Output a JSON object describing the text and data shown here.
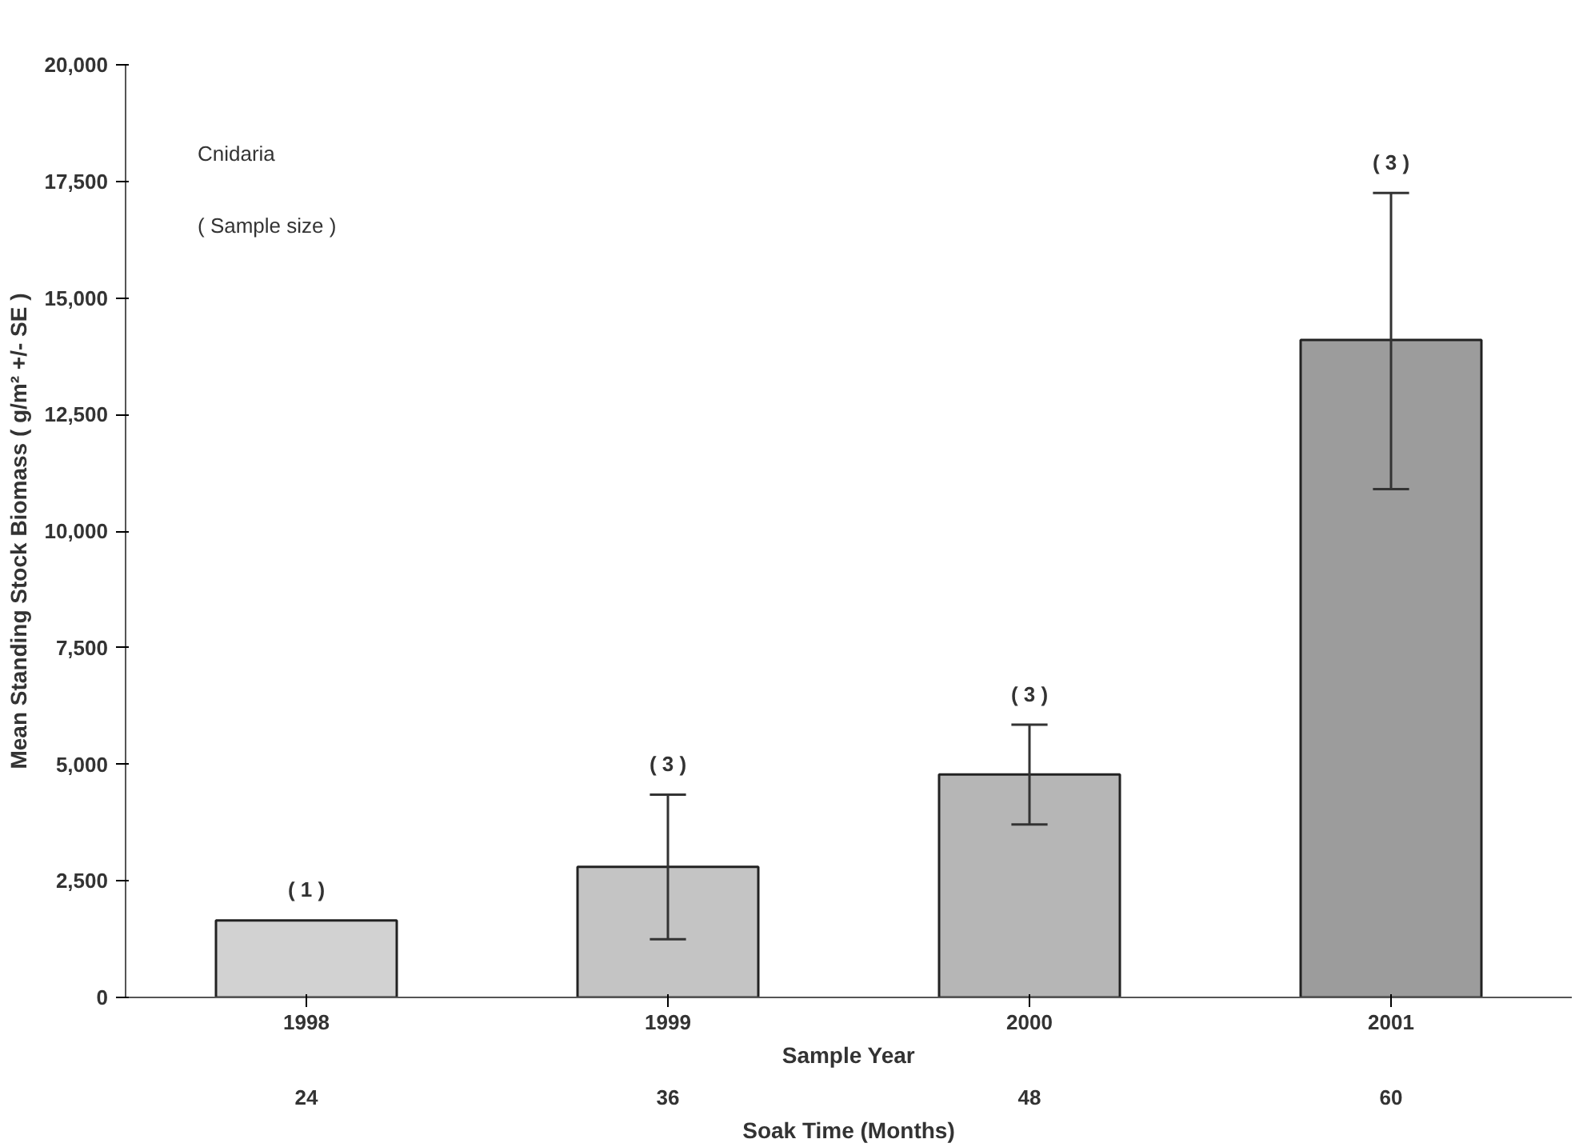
{
  "chart_data": {
    "type": "bar",
    "xlabel": "Sample Year",
    "x2label": "Soak Time (Months)",
    "ylabel": "Mean Standing Stock Biomass ( g/m² +/- SE )",
    "categories": [
      "1998",
      "1999",
      "2000",
      "2001"
    ],
    "values": [
      1650,
      2800,
      4780,
      14100
    ],
    "colors": [
      "#d2d2d2",
      "#c4c4c4",
      "#b6b6b6",
      "#9c9c9c"
    ],
    "errors": [
      null,
      [
        1250,
        4350
      ],
      [
        3710,
        5850
      ],
      [
        10900,
        17250
      ]
    ],
    "ylim": [
      0,
      20000
    ],
    "yticks": [
      {
        "value": 0,
        "label": "0"
      },
      {
        "value": 2500,
        "label": "2,500"
      },
      {
        "value": 5000,
        "label": "5,000"
      },
      {
        "value": 7500,
        "label": "7,500"
      },
      {
        "value": 10000,
        "label": "10,000"
      },
      {
        "value": 12500,
        "label": "12,500"
      },
      {
        "value": 15000,
        "label": "15,000"
      },
      {
        "value": 17500,
        "label": "17,500"
      },
      {
        "value": 20000,
        "label": "20,000"
      }
    ],
    "grid": false,
    "annotations": [
      "Cnidaria",
      "( Sample size )",
      "( 1 )",
      "( 3 )",
      "( 3 )",
      "( 3 )",
      "24",
      "36",
      "48",
      "60"
    ]
  }
}
